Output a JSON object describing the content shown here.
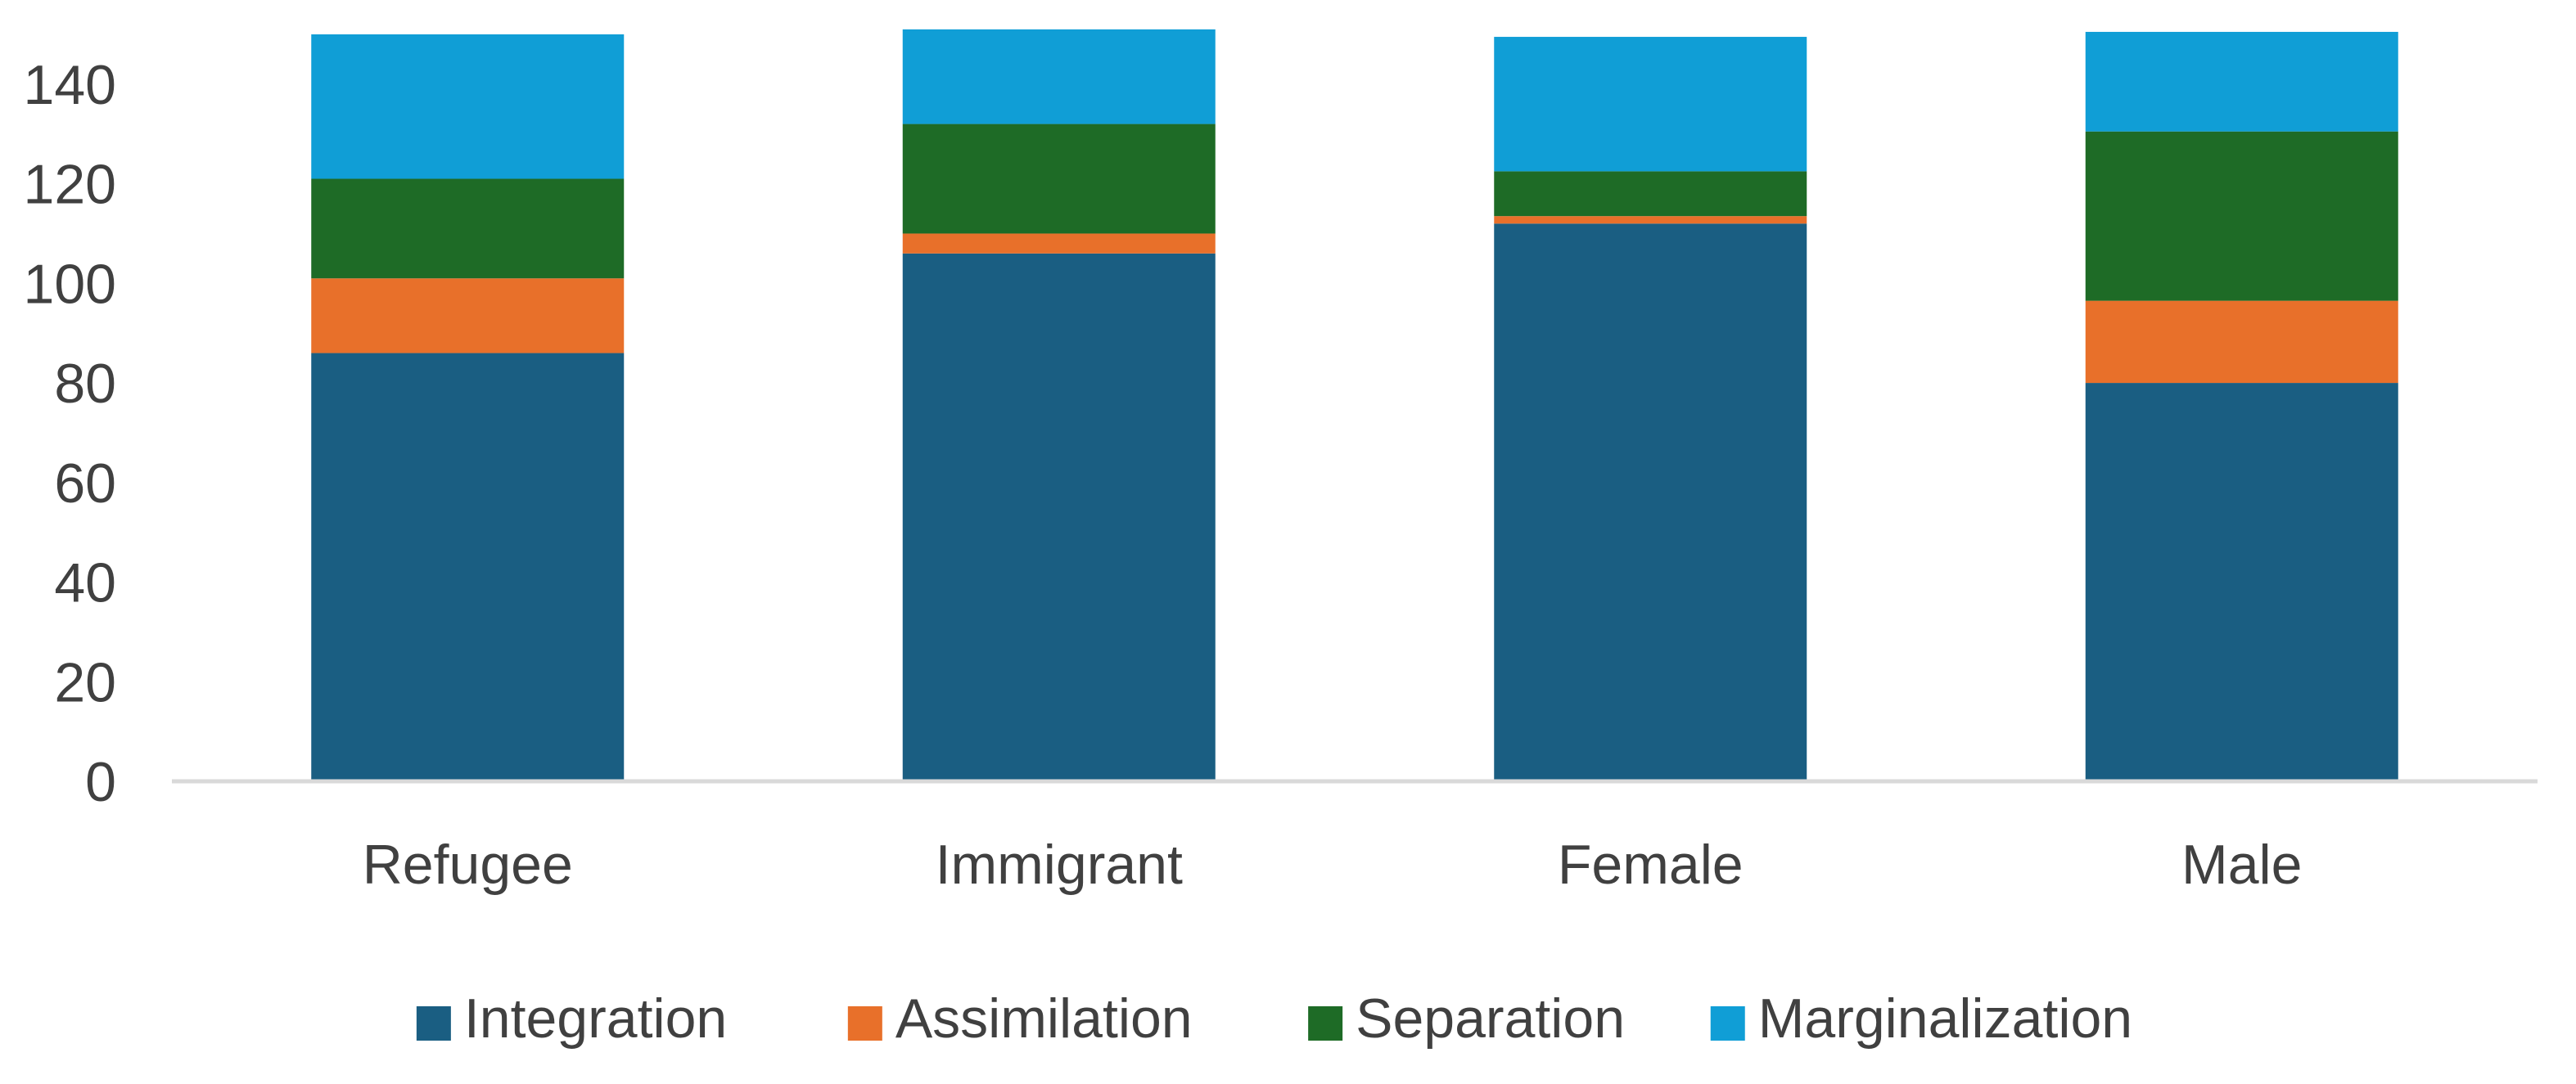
{
  "chart_data": {
    "type": "bar",
    "stacked": true,
    "title": "",
    "xlabel": "",
    "ylabel": "",
    "categories": [
      "Refugee",
      "Immigrant",
      "Female",
      "Male"
    ],
    "series": [
      {
        "name": "Integration",
        "color": "#1a5e82",
        "values": [
          86,
          106,
          112,
          80
        ]
      },
      {
        "name": "Assimilation",
        "color": "#e8702a",
        "values": [
          15,
          4,
          1.5,
          16.5
        ]
      },
      {
        "name": "Separation",
        "color": "#1e6b26",
        "values": [
          20,
          22,
          9,
          34
        ]
      },
      {
        "name": "Marginalization",
        "color": "#109ed6",
        "values": [
          29,
          19,
          27,
          20
        ]
      }
    ],
    "ylim": [
      0,
      150
    ],
    "yticks": [
      0,
      20,
      40,
      60,
      80,
      100,
      120,
      140
    ],
    "grid": false,
    "legend": "bottom"
  }
}
